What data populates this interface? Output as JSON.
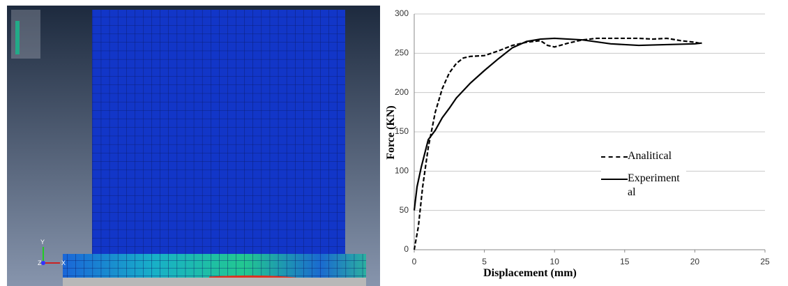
{
  "chart_data": {
    "type": "line",
    "xlabel": "Displacement (mm)",
    "ylabel": "Force (KN)",
    "xlim": [
      0,
      25
    ],
    "xticks": [
      0,
      5,
      10,
      15,
      20,
      25
    ],
    "ylim": [
      0,
      300
    ],
    "yticks": [
      0,
      50,
      100,
      150,
      200,
      250,
      300
    ],
    "grid": true,
    "series": [
      {
        "name": "Analitical",
        "color": "#000000",
        "dash": true,
        "x": [
          0,
          0.3,
          0.6,
          1,
          1.5,
          2,
          2.5,
          3,
          3.5,
          4,
          5,
          6,
          7,
          8,
          9,
          9.5,
          10,
          11,
          12,
          13,
          15,
          16,
          17,
          18,
          19,
          20,
          20.5
        ],
        "values": [
          0,
          30,
          80,
          130,
          175,
          205,
          225,
          237,
          244,
          246,
          247,
          253,
          260,
          264,
          266,
          260,
          258,
          263,
          267,
          269,
          269,
          269,
          268,
          269,
          266,
          264,
          262
        ]
      },
      {
        "name": "Experiment al",
        "color": "#000000",
        "dash": false,
        "x": [
          0,
          0.2,
          0.5,
          1,
          1.5,
          2,
          2.5,
          3,
          4,
          5,
          6,
          7,
          8,
          9,
          10,
          12,
          14,
          16,
          18,
          20,
          20.5
        ],
        "values": [
          50,
          80,
          105,
          140,
          152,
          168,
          180,
          193,
          212,
          228,
          243,
          257,
          265,
          268,
          269,
          267,
          262,
          260,
          261,
          262,
          263
        ]
      }
    ]
  },
  "viewport": {
    "axis_labels": [
      "Y",
      "X",
      "Z"
    ]
  }
}
